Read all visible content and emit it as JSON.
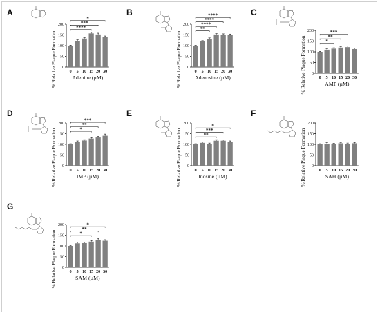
{
  "chart_data": [
    {
      "panel": "A",
      "type": "bar",
      "ylabel": "% Relative Plaque Formation",
      "xlabel": "Adenine (µM)",
      "categories": [
        "0",
        "5",
        "10",
        "15",
        "20",
        "30"
      ],
      "values": [
        100,
        120,
        133,
        157,
        152,
        140
      ],
      "errors": [
        2,
        7,
        4,
        5,
        6,
        5
      ],
      "ylim": [
        0,
        200
      ],
      "yticks": [
        "0",
        "50",
        "100",
        "150",
        "200"
      ],
      "significance": [
        {
          "from": "0",
          "to": "15",
          "label": "****"
        },
        {
          "from": "0",
          "to": "20",
          "label": "***"
        },
        {
          "from": "0",
          "to": "30",
          "label": "*"
        }
      ]
    },
    {
      "panel": "B",
      "type": "bar",
      "ylabel": "% Relative Plaque Formation",
      "xlabel": "Adenosine (µM)",
      "categories": [
        "0",
        "5",
        "10",
        "15",
        "20",
        "30"
      ],
      "values": [
        100,
        120,
        132,
        152,
        151,
        150
      ],
      "errors": [
        2,
        3,
        4,
        4,
        4,
        4
      ],
      "ylim": [
        0,
        200
      ],
      "yticks": [
        "0",
        "50",
        "100",
        "150",
        "200"
      ],
      "significance": [
        {
          "from": "0",
          "to": "10",
          "label": "**"
        },
        {
          "from": "0",
          "to": "15",
          "label": "****"
        },
        {
          "from": "0",
          "to": "20",
          "label": "****"
        },
        {
          "from": "0",
          "to": "30",
          "label": "****"
        }
      ]
    },
    {
      "panel": "C",
      "type": "bar",
      "ylabel": "% Relative Plaque Formation",
      "xlabel": "AMP (µM)",
      "categories": [
        "0",
        "5",
        "10",
        "15",
        "20",
        "30"
      ],
      "values": [
        100,
        110,
        115,
        120,
        122,
        113
      ],
      "errors": [
        2,
        4,
        4,
        5,
        5,
        5
      ],
      "ylim": [
        0,
        200
      ],
      "yticks": [
        "0",
        "50",
        "100",
        "150",
        "200"
      ],
      "significance": [
        {
          "from": "0",
          "to": "10",
          "label": "*"
        },
        {
          "from": "0",
          "to": "15",
          "label": "**"
        },
        {
          "from": "0",
          "to": "20",
          "label": "***"
        }
      ]
    },
    {
      "panel": "D",
      "type": "bar",
      "ylabel": "% Relative Plaque Formation",
      "xlabel": "IMP (µM)",
      "categories": [
        "0",
        "5",
        "10",
        "15",
        "20",
        "30"
      ],
      "values": [
        100,
        112,
        118,
        127,
        132,
        140
      ],
      "errors": [
        3,
        4,
        4,
        4,
        5,
        8
      ],
      "ylim": [
        0,
        200
      ],
      "yticks": [
        "0",
        "50",
        "100",
        "150",
        "200"
      ],
      "significance": [
        {
          "from": "0",
          "to": "15",
          "label": "*"
        },
        {
          "from": "0",
          "to": "20",
          "label": "**"
        },
        {
          "from": "0",
          "to": "30",
          "label": "***"
        }
      ]
    },
    {
      "panel": "E",
      "type": "bar",
      "ylabel": "% Relative Plaque Formation",
      "xlabel": "Inosine (µM)",
      "categories": [
        "0",
        "5",
        "10",
        "15",
        "20",
        "30"
      ],
      "values": [
        100,
        107,
        102,
        117,
        117,
        112
      ],
      "errors": [
        3,
        4,
        4,
        5,
        4,
        4
      ],
      "ylim": [
        0,
        200
      ],
      "yticks": [
        "0",
        "50",
        "100",
        "150",
        "200"
      ],
      "significance": [
        {
          "from": "0",
          "to": "15",
          "label": "**"
        },
        {
          "from": "0",
          "to": "20",
          "label": "***"
        },
        {
          "from": "0",
          "to": "30",
          "label": "*"
        }
      ]
    },
    {
      "panel": "F",
      "type": "bar",
      "ylabel": "% Relative Plaque Formation",
      "xlabel": "SAH (µM)",
      "categories": [
        "0",
        "5",
        "10",
        "15",
        "20",
        "30"
      ],
      "values": [
        100,
        103,
        101,
        105,
        102,
        105
      ],
      "errors": [
        3,
        5,
        4,
        4,
        4,
        4
      ],
      "ylim": [
        0,
        200
      ],
      "yticks": [
        "0",
        "50",
        "100",
        "150",
        "200"
      ],
      "significance": []
    },
    {
      "panel": "G",
      "type": "bar",
      "ylabel": "% Relative Plaque Formation",
      "xlabel": "SAM (µM)",
      "categories": [
        "0",
        "5",
        "10",
        "15",
        "20",
        "30"
      ],
      "values": [
        100,
        112,
        113,
        120,
        128,
        124
      ],
      "errors": [
        3,
        5,
        4,
        5,
        7,
        5
      ],
      "ylim": [
        0,
        200
      ],
      "yticks": [
        "0",
        "50",
        "100",
        "150",
        "200"
      ],
      "significance": [
        {
          "from": "0",
          "to": "15",
          "label": "*"
        },
        {
          "from": "0",
          "to": "20",
          "label": "**"
        },
        {
          "from": "0",
          "to": "30",
          "label": "*"
        }
      ]
    }
  ]
}
